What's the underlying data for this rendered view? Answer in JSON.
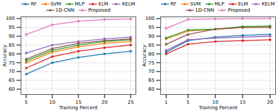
{
  "chart_data": [
    {
      "type": "line",
      "xlabel": "Training Percent",
      "ylabel": "Accuracy",
      "x": [
        5,
        10,
        15,
        20,
        25
      ],
      "xlim": [
        4,
        26
      ],
      "xticks": [
        5,
        10,
        15,
        20,
        25
      ],
      "ylim": [
        57,
        101
      ],
      "yticks": [
        60,
        65,
        70,
        75,
        80,
        85,
        90,
        95,
        100
      ],
      "grid": true,
      "legend": "top",
      "marker": "circle",
      "line_style": "solid",
      "series": [
        {
          "name": "RF",
          "color": "#1f77b4",
          "values": [
            68.5,
            75,
            78,
            80,
            81.5
          ]
        },
        {
          "name": "SVM",
          "color": "#ff7f0e",
          "values": [
            75,
            81,
            84,
            86,
            87
          ]
        },
        {
          "name": "MLP",
          "color": "#2ca02c",
          "values": [
            76,
            82,
            85,
            87,
            88
          ]
        },
        {
          "name": "ELM",
          "color": "#d62728",
          "values": [
            72,
            78.5,
            81.5,
            83.5,
            85
          ]
        },
        {
          "name": "KELM",
          "color": "#9467bd",
          "values": [
            80.5,
            85,
            87,
            88.5,
            89.5
          ]
        },
        {
          "name": "1D-CNN",
          "color": "#8c564b",
          "values": [
            77,
            83,
            86,
            87.5,
            88.5
          ]
        },
        {
          "name": "Proposed",
          "color": "#e377c2",
          "values": [
            91,
            96.5,
            98.5,
            99.5,
            99.8
          ]
        }
      ]
    },
    {
      "type": "line",
      "xlabel": "Training Percent",
      "ylabel": "Accuracy",
      "x": [
        1,
        5,
        10,
        15,
        20
      ],
      "xlim": [
        0,
        21
      ],
      "xticks": [
        1,
        5,
        10,
        15,
        20
      ],
      "ylim": [
        57,
        101
      ],
      "yticks": [
        60,
        65,
        70,
        75,
        80,
        85,
        90,
        95,
        100
      ],
      "grid": true,
      "legend": "top",
      "marker": "circle",
      "line_style": "solid",
      "series": [
        {
          "name": "RF",
          "color": "#1f77b4",
          "values": [
            81,
            87.5,
            89.5,
            90.5,
            91
          ]
        },
        {
          "name": "SVM",
          "color": "#ff7f0e",
          "values": [
            88.5,
            93,
            94,
            95,
            95.5
          ]
        },
        {
          "name": "MLP",
          "color": "#2ca02c",
          "values": [
            89,
            93.5,
            94,
            95.5,
            95.8
          ]
        },
        {
          "name": "ELM",
          "color": "#d62728",
          "values": [
            80,
            85.5,
            87,
            87.5,
            88
          ]
        },
        {
          "name": "KELM",
          "color": "#9467bd",
          "values": [
            82,
            88,
            89,
            89.5,
            90
          ]
        },
        {
          "name": "1D-CNN",
          "color": "#8c564b",
          "values": [
            85.5,
            91,
            94,
            95,
            95
          ]
        },
        {
          "name": "Proposed",
          "color": "#e377c2",
          "values": [
            94.5,
            99.5,
            99.8,
            100,
            100
          ]
        }
      ]
    }
  ]
}
